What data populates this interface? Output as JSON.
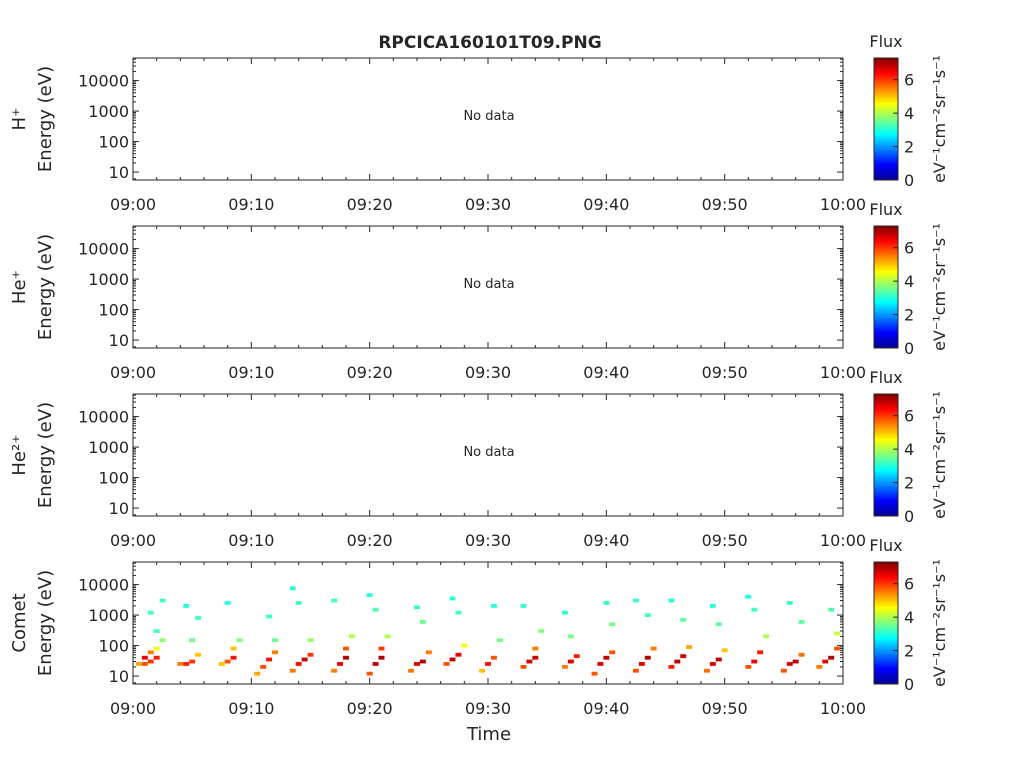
{
  "title": "RPCICA160101T09.PNG",
  "colorbar": {
    "label": "Flux",
    "ticks": [
      "0",
      "2",
      "4",
      "6"
    ],
    "unit": "eV⁻¹cm⁻²sr⁻¹s⁻¹"
  },
  "panels": [
    {
      "species": "H⁺",
      "ylabel": "Energy (eV)",
      "message": "No data",
      "xlabel": ""
    },
    {
      "species": "He⁺",
      "ylabel": "Energy (eV)",
      "message": "No data",
      "xlabel": ""
    },
    {
      "species": "He²⁺",
      "ylabel": "Energy (eV)",
      "message": "No data",
      "xlabel": ""
    },
    {
      "species": "Comet",
      "ylabel": "Energy (eV)",
      "message": "",
      "xlabel": "Time"
    }
  ],
  "chart_data": [
    {
      "type": "heatmap",
      "panel": "H+",
      "yscale": "log",
      "y_ticks": [
        10,
        100,
        1000,
        10000
      ],
      "x_ticks": [
        "09:00",
        "09:10",
        "09:20",
        "09:30",
        "09:40",
        "09:50",
        "10:00"
      ],
      "clim": [
        0,
        7.3
      ],
      "cells": []
    },
    {
      "type": "heatmap",
      "panel": "He+",
      "yscale": "log",
      "y_ticks": [
        10,
        100,
        1000,
        10000
      ],
      "x_ticks": [
        "09:00",
        "09:10",
        "09:20",
        "09:30",
        "09:40",
        "09:50",
        "10:00"
      ],
      "clim": [
        0,
        7.3
      ],
      "cells": []
    },
    {
      "type": "heatmap",
      "panel": "He2+",
      "yscale": "log",
      "y_ticks": [
        10,
        100,
        1000,
        10000
      ],
      "x_ticks": [
        "09:00",
        "09:10",
        "09:20",
        "09:30",
        "09:40",
        "09:50",
        "10:00"
      ],
      "clim": [
        0,
        7.3
      ],
      "cells": []
    },
    {
      "type": "heatmap",
      "panel": "Comet",
      "yscale": "log",
      "y_ticks": [
        10,
        100,
        1000,
        10000
      ],
      "x_ticks": [
        "09:00",
        "09:10",
        "09:20",
        "09:30",
        "09:40",
        "09:50",
        "10:00"
      ],
      "clim": [
        0,
        7.3
      ],
      "cell_columns": "[minutes after 09:00, energy eV, flux]",
      "cells": [
        [
          0.5,
          25,
          5.2
        ],
        [
          1.0,
          25,
          5.8
        ],
        [
          1.0,
          40,
          6.5
        ],
        [
          1.5,
          30,
          6.0
        ],
        [
          1.5,
          60,
          5.5
        ],
        [
          2.0,
          40,
          6.2
        ],
        [
          2.0,
          80,
          4.5
        ],
        [
          2.5,
          150,
          3.8
        ],
        [
          2.0,
          300,
          3.2
        ],
        [
          1.5,
          1200,
          3.2
        ],
        [
          2.5,
          3000,
          3.2
        ],
        [
          4.0,
          25,
          5.5
        ],
        [
          4.5,
          25,
          6.2
        ],
        [
          5.0,
          30,
          6.0
        ],
        [
          5.5,
          50,
          5.0
        ],
        [
          5.0,
          150,
          3.5
        ],
        [
          5.5,
          800,
          3.2
        ],
        [
          4.5,
          2000,
          3.0
        ],
        [
          7.5,
          25,
          5.0
        ],
        [
          8.0,
          30,
          5.8
        ],
        [
          8.5,
          40,
          6.3
        ],
        [
          8.5,
          80,
          5.0
        ],
        [
          9.0,
          150,
          3.6
        ],
        [
          8.0,
          2500,
          3.0
        ],
        [
          10.5,
          12,
          5.2
        ],
        [
          11.0,
          20,
          5.8
        ],
        [
          11.5,
          35,
          6.3
        ],
        [
          12.0,
          60,
          5.5
        ],
        [
          12.0,
          150,
          3.5
        ],
        [
          11.5,
          900,
          3.2
        ],
        [
          13.5,
          15,
          5.5
        ],
        [
          14.0,
          25,
          6.3
        ],
        [
          14.5,
          35,
          6.8
        ],
        [
          15.0,
          50,
          6.0
        ],
        [
          15.0,
          150,
          3.8
        ],
        [
          14.0,
          2500,
          3.2
        ],
        [
          13.5,
          7500,
          3.0
        ],
        [
          17.0,
          15,
          5.5
        ],
        [
          17.5,
          25,
          6.5
        ],
        [
          18.0,
          40,
          6.9
        ],
        [
          18.0,
          80,
          5.8
        ],
        [
          18.5,
          200,
          4.0
        ],
        [
          17.0,
          3000,
          3.2
        ],
        [
          20.0,
          12,
          5.8
        ],
        [
          20.5,
          25,
          6.8
        ],
        [
          21.0,
          40,
          7.0
        ],
        [
          21.0,
          80,
          6.0
        ],
        [
          21.5,
          200,
          4.0
        ],
        [
          20.5,
          1500,
          3.3
        ],
        [
          20.0,
          4500,
          3.0
        ],
        [
          23.5,
          15,
          5.5
        ],
        [
          24.0,
          25,
          6.6
        ],
        [
          24.5,
          30,
          6.9
        ],
        [
          25.0,
          60,
          5.5
        ],
        [
          24.5,
          600,
          3.5
        ],
        [
          24.0,
          1800,
          3.2
        ],
        [
          26.5,
          25,
          5.8
        ],
        [
          27.0,
          35,
          6.8
        ],
        [
          27.5,
          50,
          6.5
        ],
        [
          28.0,
          100,
          4.5
        ],
        [
          27.5,
          1200,
          3.2
        ],
        [
          27.0,
          3500,
          3.0
        ],
        [
          29.5,
          15,
          5.0
        ],
        [
          30.0,
          25,
          6.3
        ],
        [
          30.5,
          40,
          5.8
        ],
        [
          31.0,
          150,
          3.6
        ],
        [
          30.5,
          2000,
          3.0
        ],
        [
          33.0,
          20,
          5.8
        ],
        [
          33.5,
          30,
          6.7
        ],
        [
          34.0,
          40,
          6.8
        ],
        [
          34.0,
          80,
          5.5
        ],
        [
          34.5,
          300,
          3.7
        ],
        [
          33.0,
          2000,
          3.1
        ],
        [
          36.5,
          20,
          5.5
        ],
        [
          37.0,
          30,
          6.6
        ],
        [
          37.5,
          45,
          6.2
        ],
        [
          37.0,
          200,
          3.6
        ],
        [
          36.5,
          1200,
          3.1
        ],
        [
          39.0,
          12,
          5.8
        ],
        [
          39.5,
          25,
          6.7
        ],
        [
          40.0,
          40,
          6.8
        ],
        [
          40.5,
          60,
          5.8
        ],
        [
          40.5,
          500,
          3.6
        ],
        [
          40.0,
          2500,
          3.1
        ],
        [
          42.5,
          15,
          5.8
        ],
        [
          43.0,
          25,
          6.6
        ],
        [
          43.5,
          40,
          6.9
        ],
        [
          44.0,
          80,
          5.5
        ],
        [
          43.5,
          1000,
          3.2
        ],
        [
          42.5,
          3000,
          3.1
        ],
        [
          45.5,
          20,
          6.2
        ],
        [
          46.0,
          30,
          6.9
        ],
        [
          46.5,
          45,
          6.8
        ],
        [
          47.0,
          90,
          5.2
        ],
        [
          46.5,
          700,
          3.4
        ],
        [
          45.5,
          3000,
          3.0
        ],
        [
          48.5,
          15,
          5.6
        ],
        [
          49.0,
          25,
          6.6
        ],
        [
          49.5,
          35,
          6.8
        ],
        [
          50.0,
          70,
          5.0
        ],
        [
          49.5,
          500,
          3.4
        ],
        [
          49.0,
          2000,
          3.0
        ],
        [
          52.0,
          20,
          5.8
        ],
        [
          52.5,
          30,
          6.5
        ],
        [
          53.0,
          60,
          6.2
        ],
        [
          53.5,
          200,
          4.0
        ],
        [
          52.5,
          1500,
          3.2
        ],
        [
          52.0,
          4000,
          3.0
        ],
        [
          55.0,
          15,
          5.8
        ],
        [
          55.5,
          25,
          6.7
        ],
        [
          56.0,
          30,
          6.9
        ],
        [
          56.5,
          50,
          5.6
        ],
        [
          56.5,
          600,
          3.4
        ],
        [
          55.5,
          2500,
          3.1
        ],
        [
          58.0,
          20,
          5.5
        ],
        [
          58.5,
          30,
          6.6
        ],
        [
          59.0,
          40,
          6.9
        ],
        [
          59.5,
          80,
          5.8
        ],
        [
          59.5,
          250,
          4.2
        ],
        [
          59.0,
          1500,
          3.3
        ]
      ]
    }
  ]
}
